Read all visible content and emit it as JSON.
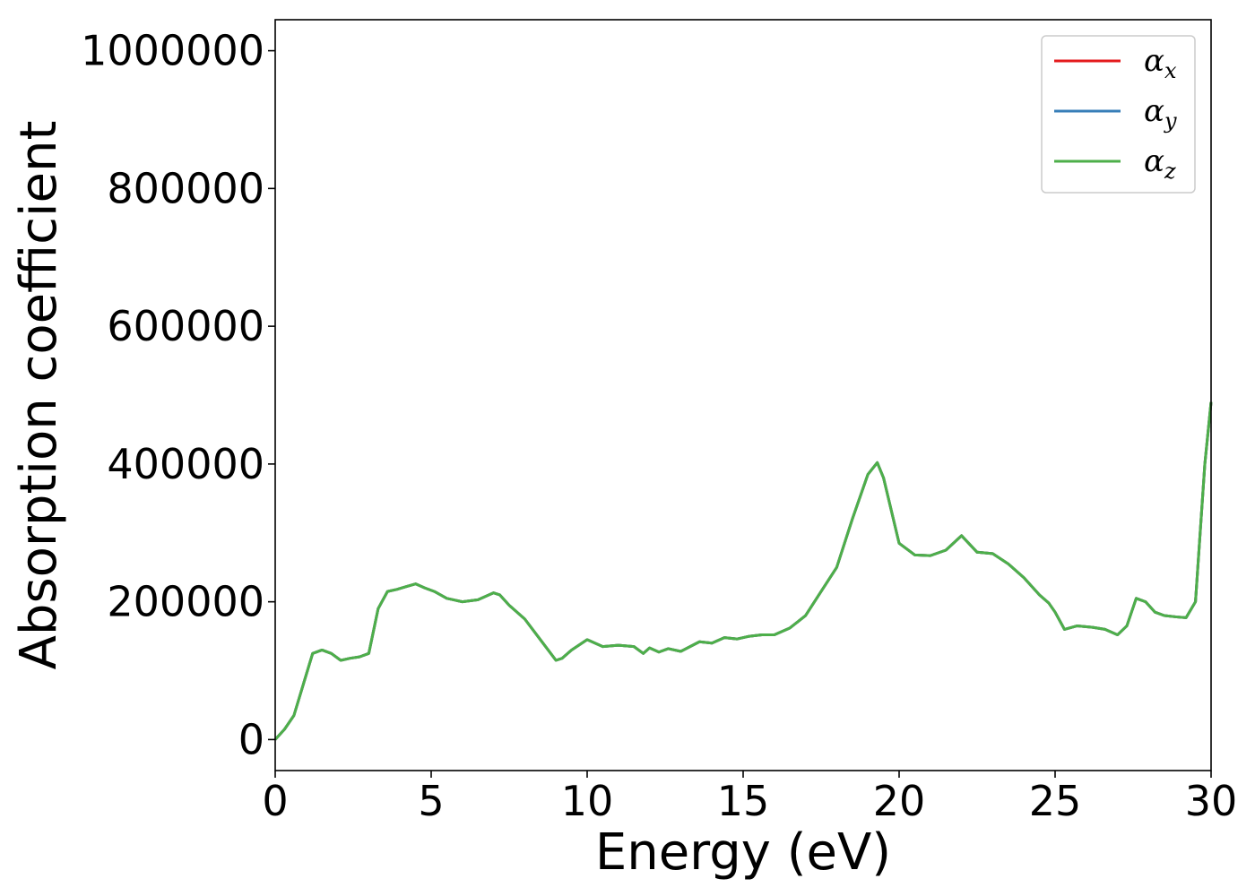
{
  "chart_data": {
    "type": "line",
    "title": "",
    "xlabel": "Energy (eV)",
    "ylabel": "Absorption coefficient",
    "xlim": [
      0,
      30
    ],
    "ylim": [
      -45000,
      1045000
    ],
    "xticks": [
      "0",
      "5",
      "10",
      "15",
      "20",
      "25",
      "30"
    ],
    "yticks": [
      "0",
      "200000",
      "400000",
      "600000",
      "800000",
      "1000000"
    ],
    "grid": false,
    "legend": "top-right",
    "x": [
      0,
      0.3,
      0.6,
      0.9,
      1.2,
      1.5,
      1.8,
      2.1,
      2.4,
      2.7,
      3.0,
      3.3,
      3.6,
      3.9,
      4.2,
      4.5,
      4.8,
      5.1,
      5.5,
      6.0,
      6.5,
      7.0,
      7.2,
      7.5,
      8.0,
      8.5,
      9.0,
      9.2,
      9.5,
      10.0,
      10.5,
      11.0,
      11.5,
      11.8,
      12.0,
      12.3,
      12.6,
      13.0,
      13.3,
      13.6,
      14.0,
      14.4,
      14.8,
      15.2,
      15.6,
      16.0,
      16.5,
      17.0,
      17.5,
      18.0,
      18.5,
      19.0,
      19.3,
      19.5,
      20.0,
      20.5,
      21.0,
      21.5,
      22.0,
      22.5,
      23.0,
      23.5,
      24.0,
      24.5,
      24.8,
      25.0,
      25.3,
      25.7,
      26.2,
      26.6,
      27.0,
      27.3,
      27.6,
      27.9,
      28.2,
      28.5,
      28.9,
      29.2,
      29.5,
      29.8,
      30.0
    ],
    "series": [
      {
        "name": "α_x",
        "label_base": "α",
        "label_sub": "x",
        "color": "#e41a1c",
        "values": [
          0,
          15000,
          35000,
          80000,
          125000,
          130000,
          125000,
          115000,
          118000,
          120000,
          125000,
          190000,
          215000,
          218000,
          222000,
          226000,
          220000,
          215000,
          205000,
          200000,
          203000,
          213000,
          210000,
          195000,
          175000,
          145000,
          115000,
          118000,
          130000,
          145000,
          135000,
          137000,
          135000,
          125000,
          133000,
          127000,
          132000,
          128000,
          135000,
          142000,
          140000,
          148000,
          146000,
          150000,
          152000,
          152000,
          162000,
          180000,
          215000,
          250000,
          320000,
          385000,
          402000,
          380000,
          285000,
          268000,
          267000,
          275000,
          296000,
          272000,
          270000,
          255000,
          235000,
          210000,
          198000,
          185000,
          160000,
          165000,
          163000,
          160000,
          152000,
          165000,
          205000,
          200000,
          185000,
          180000,
          178000,
          177000,
          200000,
          400000,
          490000
        ]
      },
      {
        "name": "α_y",
        "label_base": "α",
        "label_sub": "y",
        "color": "#377eb8",
        "values": [
          0,
          15000,
          35000,
          80000,
          125000,
          130000,
          125000,
          115000,
          118000,
          120000,
          125000,
          190000,
          215000,
          218000,
          222000,
          226000,
          220000,
          215000,
          205000,
          200000,
          203000,
          213000,
          210000,
          195000,
          175000,
          145000,
          115000,
          118000,
          130000,
          145000,
          135000,
          137000,
          135000,
          125000,
          133000,
          127000,
          132000,
          128000,
          135000,
          142000,
          140000,
          148000,
          146000,
          150000,
          152000,
          152000,
          162000,
          180000,
          215000,
          250000,
          320000,
          385000,
          402000,
          380000,
          285000,
          268000,
          267000,
          275000,
          296000,
          272000,
          270000,
          255000,
          235000,
          210000,
          198000,
          185000,
          160000,
          165000,
          163000,
          160000,
          152000,
          165000,
          205000,
          200000,
          185000,
          180000,
          178000,
          177000,
          200000,
          400000,
          490000
        ]
      },
      {
        "name": "α_z",
        "label_base": "α",
        "label_sub": "z",
        "color": "#4daf4a",
        "values": [
          0,
          15000,
          35000,
          80000,
          125000,
          130000,
          125000,
          115000,
          118000,
          120000,
          125000,
          190000,
          215000,
          218000,
          222000,
          226000,
          220000,
          215000,
          205000,
          200000,
          203000,
          213000,
          210000,
          195000,
          175000,
          145000,
          115000,
          118000,
          130000,
          145000,
          135000,
          137000,
          135000,
          125000,
          133000,
          127000,
          132000,
          128000,
          135000,
          142000,
          140000,
          148000,
          146000,
          150000,
          152000,
          152000,
          162000,
          180000,
          215000,
          250000,
          320000,
          385000,
          402000,
          380000,
          285000,
          268000,
          267000,
          275000,
          296000,
          272000,
          270000,
          255000,
          235000,
          210000,
          198000,
          185000,
          160000,
          165000,
          163000,
          160000,
          152000,
          165000,
          205000,
          200000,
          185000,
          180000,
          178000,
          177000,
          200000,
          400000,
          490000
        ]
      }
    ]
  }
}
